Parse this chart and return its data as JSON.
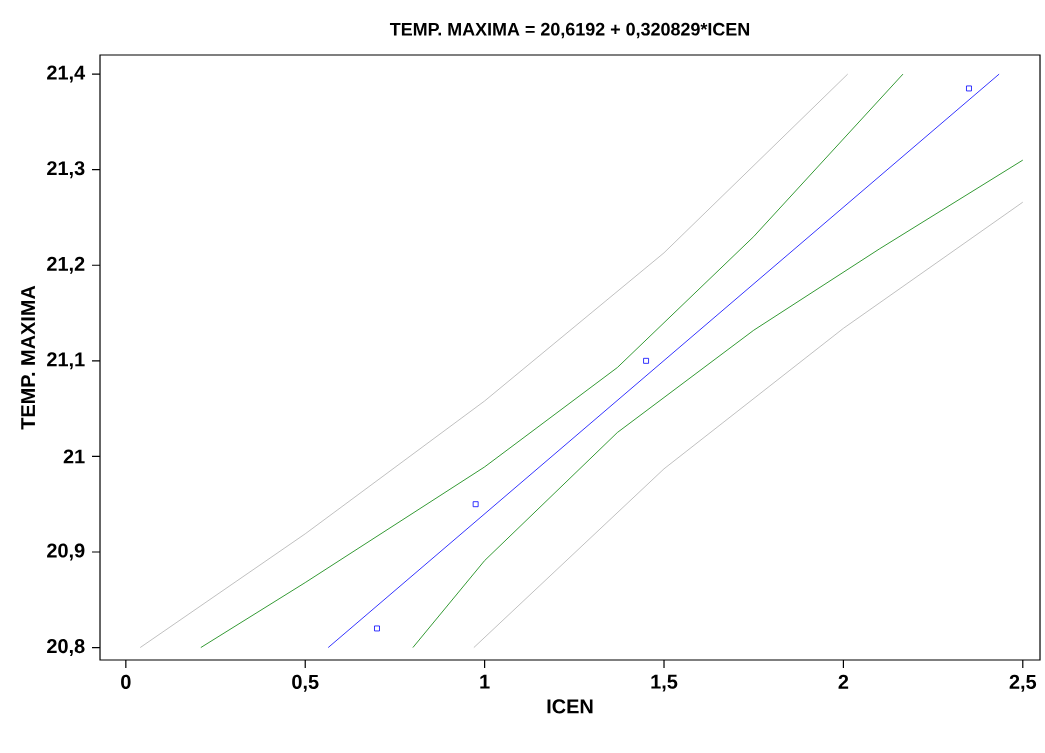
{
  "chart_data": {
    "type": "scatter",
    "title": "TEMP. MAXIMA = 20,6192 + 0,320829*ICEN",
    "xlabel": "ICEN",
    "ylabel": "TEMP. MAXIMA",
    "xlim": [
      -0.072,
      2.548
    ],
    "ylim": [
      20.787,
      21.42
    ],
    "xticks": [
      0,
      {
        "value": 0.5,
        "label": "0,5"
      },
      1,
      {
        "value": 1.5,
        "label": "1,5"
      },
      2,
      {
        "value": 2.5,
        "label": "2,5"
      }
    ],
    "yticks": [
      {
        "value": 20.8,
        "label": "20,8"
      },
      {
        "value": 20.9,
        "label": "20,9"
      },
      21,
      {
        "value": 21.1,
        "label": "21,1"
      },
      {
        "value": 21.2,
        "label": "21,2"
      },
      {
        "value": 21.3,
        "label": "21,3"
      },
      {
        "value": 21.4,
        "label": "21,4"
      }
    ],
    "grid": false,
    "series": [
      {
        "type": "line",
        "color": "#b0b0b0",
        "x": [
          0.04,
          0.5,
          1.0,
          1.5,
          2.012
        ],
        "values": [
          20.8,
          20.919,
          21.058,
          21.213,
          21.4
        ]
      },
      {
        "type": "line",
        "color": "#b0b0b0",
        "x": [
          0.97,
          1.5,
          2.0,
          2.5
        ],
        "values": [
          20.8,
          20.987,
          21.134,
          21.266
        ]
      },
      {
        "type": "line",
        "color": "#008000",
        "x": [
          0.209,
          0.5,
          1.0,
          1.37,
          1.75,
          2.166
        ],
        "values": [
          20.8,
          20.868,
          20.989,
          21.093,
          21.23,
          21.4
        ]
      },
      {
        "type": "line",
        "color": "#008000",
        "x": [
          0.8,
          1.0,
          1.37,
          1.75,
          2.1,
          2.5
        ],
        "values": [
          20.8,
          20.891,
          21.025,
          21.132,
          21.217,
          21.31
        ]
      },
      {
        "type": "line",
        "color": "#0000ff",
        "x": [
          0.564,
          2.434
        ],
        "values": [
          20.8,
          21.4
        ]
      },
      {
        "color": "#0000ff",
        "marker": "square",
        "x": [
          0.7,
          0.975,
          1.45,
          2.35
        ],
        "values": [
          20.82,
          20.95,
          21.1,
          21.385
        ]
      }
    ]
  }
}
